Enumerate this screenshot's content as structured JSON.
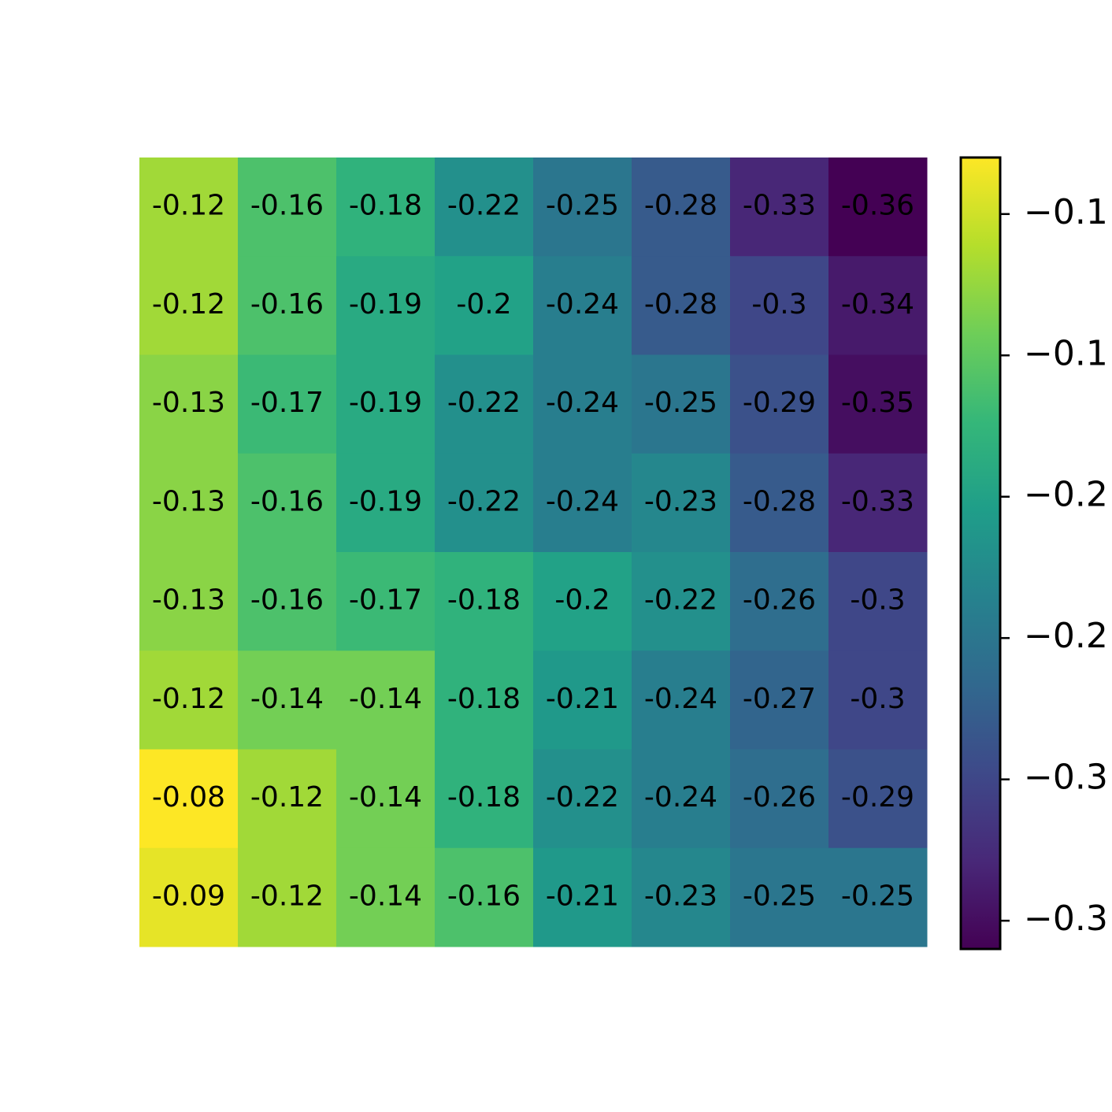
{
  "chart_data": {
    "type": "heatmap",
    "colormap": "viridis",
    "values": [
      [
        -0.12,
        -0.16,
        -0.18,
        -0.22,
        -0.25,
        -0.28,
        -0.33,
        -0.36
      ],
      [
        -0.12,
        -0.16,
        -0.19,
        -0.2,
        -0.24,
        -0.28,
        -0.3,
        -0.34
      ],
      [
        -0.13,
        -0.17,
        -0.19,
        -0.22,
        -0.24,
        -0.25,
        -0.29,
        -0.35
      ],
      [
        -0.13,
        -0.16,
        -0.19,
        -0.22,
        -0.24,
        -0.23,
        -0.28,
        -0.33
      ],
      [
        -0.13,
        -0.16,
        -0.17,
        -0.18,
        -0.2,
        -0.22,
        -0.26,
        -0.3
      ],
      [
        -0.12,
        -0.14,
        -0.14,
        -0.18,
        -0.21,
        -0.24,
        -0.27,
        -0.3
      ],
      [
        -0.08,
        -0.12,
        -0.14,
        -0.18,
        -0.22,
        -0.24,
        -0.26,
        -0.29
      ],
      [
        -0.09,
        -0.12,
        -0.14,
        -0.16,
        -0.21,
        -0.23,
        -0.25,
        -0.25
      ]
    ],
    "clim": [
      -0.36,
      -0.08
    ],
    "cticks": [
      {
        "value": -0.1,
        "label": "−0.1"
      },
      {
        "value": -0.15,
        "label": "−0.1"
      },
      {
        "value": -0.2,
        "label": "−0.2"
      },
      {
        "value": -0.25,
        "label": "−0.2"
      },
      {
        "value": -0.3,
        "label": "−0.3"
      },
      {
        "value": -0.35,
        "label": "−0.3"
      }
    ]
  }
}
